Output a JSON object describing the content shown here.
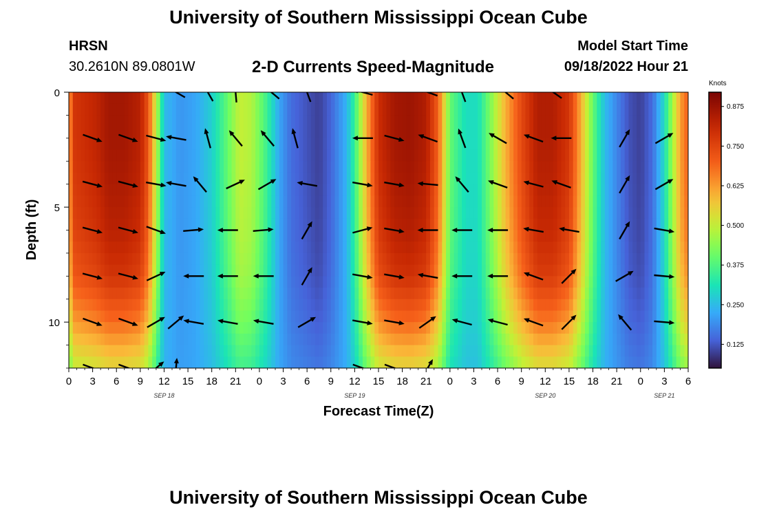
{
  "header": {
    "title": "University of Southern Mississippi Ocean Cube",
    "station": "HRSN",
    "coords": "30.2610N  89.0801W",
    "subtitle": "2-D Currents Speed-Magnitude",
    "model_start_label": "Model Start Time",
    "model_start_value": "09/18/2022 Hour 21"
  },
  "footer": {
    "title": "University of Southern Mississippi Ocean Cube"
  },
  "chart_data": {
    "type": "heatmap",
    "title": "2-D Currents Speed-Magnitude",
    "xlabel": "Forecast Time(Z)",
    "ylabel": "Depth (ft)",
    "x_unit": "hours from 2022-09-18 00Z",
    "xlim": [
      0,
      78
    ],
    "ylim": [
      12,
      0
    ],
    "y_inverted": true,
    "x_tick_labels": [
      "0",
      "3",
      "6",
      "9",
      "12",
      "15",
      "18",
      "21",
      "0",
      "3",
      "6",
      "9",
      "12",
      "15",
      "18",
      "21",
      "0",
      "3",
      "6",
      "9",
      "12",
      "15",
      "18",
      "21",
      "0",
      "3",
      "6"
    ],
    "date_labels": [
      {
        "label": "SEP 18",
        "hour": 12
      },
      {
        "label": "SEP 19",
        "hour": 36
      },
      {
        "label": "SEP 20",
        "hour": 60
      },
      {
        "label": "SEP 21",
        "hour": 75
      }
    ],
    "y_ticks": [
      0,
      5,
      10
    ],
    "colorbar": {
      "title": "Knots",
      "range": [
        0.05,
        0.92
      ],
      "ticks": [
        0.125,
        0.25,
        0.375,
        0.5,
        0.625,
        0.75,
        0.875
      ],
      "tick_labels": [
        "0.125",
        "0.250",
        "0.375",
        "0.500",
        "0.625",
        "0.750",
        "0.875"
      ]
    },
    "speed_profile": {
      "hours": [
        0,
        0.6,
        2,
        3.5,
        5,
        7,
        9,
        10,
        11.2,
        12,
        14,
        16,
        18,
        20,
        21.5,
        23,
        25,
        26.5,
        28,
        30,
        31.5,
        33,
        35,
        36,
        37.5,
        39,
        41,
        43,
        45,
        46.5,
        48,
        50,
        51.5,
        53,
        55,
        57,
        59,
        61,
        63,
        64.5,
        66,
        67.5,
        69,
        70.5,
        72,
        73.5,
        75,
        77,
        78
      ],
      "speeds": [
        0.6,
        0.78,
        0.8,
        0.82,
        0.86,
        0.86,
        0.83,
        0.72,
        0.45,
        0.25,
        0.2,
        0.22,
        0.28,
        0.4,
        0.5,
        0.48,
        0.35,
        0.22,
        0.15,
        0.12,
        0.1,
        0.14,
        0.24,
        0.35,
        0.6,
        0.8,
        0.86,
        0.87,
        0.84,
        0.7,
        0.4,
        0.3,
        0.3,
        0.42,
        0.6,
        0.74,
        0.84,
        0.84,
        0.78,
        0.6,
        0.4,
        0.25,
        0.18,
        0.12,
        0.1,
        0.15,
        0.3,
        0.62,
        0.7
      ]
    },
    "depth_factor": {
      "depths": [
        0,
        2,
        4,
        6,
        8,
        10,
        12
      ],
      "factors": [
        1.0,
        1.0,
        0.98,
        0.95,
        0.88,
        0.72,
        0.5
      ]
    },
    "vectors": {
      "depths": [
        0,
        2,
        4,
        6,
        8,
        10,
        12
      ],
      "rows": [
        [
          [
            13.5,
            210
          ],
          [
            17.5,
            240
          ],
          [
            21,
            265
          ],
          [
            25.5,
            220
          ],
          [
            30,
            250
          ],
          [
            37,
            195
          ],
          [
            45.2,
            200
          ],
          [
            49.5,
            250
          ],
          [
            55,
            220
          ],
          [
            61,
            215
          ]
        ],
        [
          [
            3,
            20
          ],
          [
            7.5,
            20
          ],
          [
            11,
            15
          ],
          [
            13.5,
            190
          ],
          [
            17.5,
            255
          ],
          [
            21,
            230
          ],
          [
            25,
            230
          ],
          [
            28.5,
            255
          ],
          [
            37,
            180
          ],
          [
            41,
            15
          ],
          [
            45.2,
            200
          ],
          [
            49.5,
            250
          ],
          [
            54,
            210
          ],
          [
            58.5,
            200
          ],
          [
            62,
            180
          ],
          [
            70,
            300
          ],
          [
            75,
            330
          ]
        ],
        [
          [
            3,
            15
          ],
          [
            7.5,
            15
          ],
          [
            11,
            10
          ],
          [
            13.5,
            190
          ],
          [
            16.5,
            230
          ],
          [
            21,
            335
          ],
          [
            25,
            330
          ],
          [
            30,
            190
          ],
          [
            37,
            10
          ],
          [
            41,
            10
          ],
          [
            45.2,
            185
          ],
          [
            49.5,
            230
          ],
          [
            54,
            200
          ],
          [
            58.5,
            195
          ],
          [
            62,
            200
          ],
          [
            70,
            300
          ],
          [
            75,
            330
          ]
        ],
        [
          [
            3,
            15
          ],
          [
            7.5,
            15
          ],
          [
            11,
            20
          ],
          [
            15.7,
            355
          ],
          [
            20,
            180
          ],
          [
            24.5,
            355
          ],
          [
            30,
            300
          ],
          [
            37,
            345
          ],
          [
            41,
            10
          ],
          [
            45.2,
            180
          ],
          [
            49.5,
            180
          ],
          [
            54,
            180
          ],
          [
            58.5,
            190
          ],
          [
            63,
            190
          ],
          [
            70,
            300
          ],
          [
            75,
            10
          ]
        ],
        [
          [
            3,
            15
          ],
          [
            7.5,
            15
          ],
          [
            11,
            335
          ],
          [
            15.7,
            180
          ],
          [
            20,
            180
          ],
          [
            24.5,
            180
          ],
          [
            30,
            300
          ],
          [
            37,
            10
          ],
          [
            41,
            10
          ],
          [
            45.2,
            190
          ],
          [
            49.5,
            180
          ],
          [
            54,
            180
          ],
          [
            58.5,
            200
          ],
          [
            63,
            315
          ],
          [
            70,
            330
          ],
          [
            75,
            5
          ]
        ],
        [
          [
            3,
            20
          ],
          [
            7.5,
            20
          ],
          [
            11,
            330
          ],
          [
            13.5,
            320
          ],
          [
            15.7,
            190
          ],
          [
            20,
            190
          ],
          [
            24.5,
            190
          ],
          [
            30,
            330
          ],
          [
            37,
            10
          ],
          [
            41,
            10
          ],
          [
            45.2,
            325
          ],
          [
            49.5,
            195
          ],
          [
            54,
            195
          ],
          [
            58.5,
            200
          ],
          [
            63,
            315
          ],
          [
            70,
            230
          ],
          [
            75,
            5
          ]
        ],
        [
          [
            3,
            20
          ],
          [
            7.5,
            20
          ],
          [
            11,
            320
          ],
          [
            13.5,
            275
          ],
          [
            37,
            20
          ],
          [
            41,
            20
          ],
          [
            45.2,
            300
          ]
        ]
      ],
      "angle_convention": "screen degrees, 0 = pointing right, clockwise positive"
    }
  }
}
